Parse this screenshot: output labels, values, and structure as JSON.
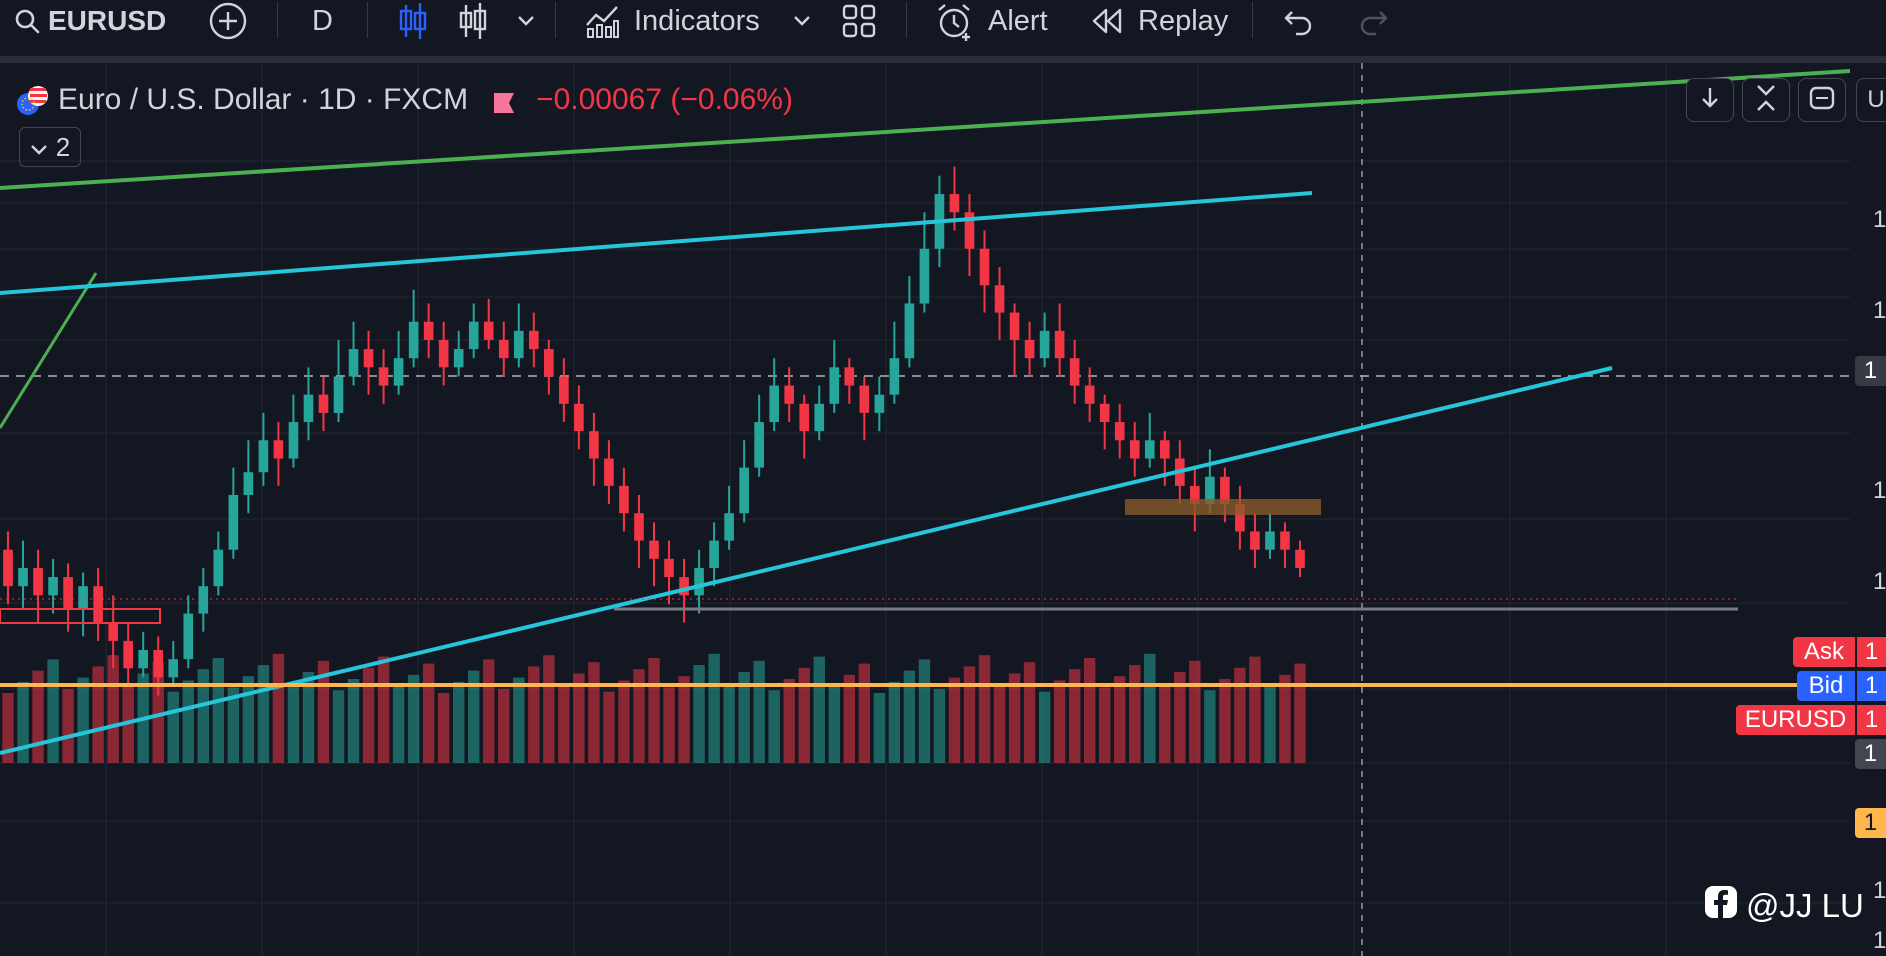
{
  "toolbar": {
    "symbol": "EURUSD",
    "interval": "D",
    "indicators_label": "Indicators",
    "alert_label": "Alert",
    "replay_label": "Replay"
  },
  "legend": {
    "title": "Euro / U.S. Dollar · 1D · FXCM",
    "change": "−0.00067 (−0.06%)",
    "collapse_count": "2"
  },
  "price_tags": {
    "ask": "Ask",
    "bid": "Bid",
    "symbol": "EURUSD",
    "axis_digit": "1",
    "top_right_partial": "U"
  },
  "watermark": {
    "text": "@JJ LU"
  },
  "colors": {
    "background": "#131722",
    "up": "#26a69a",
    "down": "#f23645",
    "trend_green": "#4caf50",
    "trend_cyan": "#26c6da",
    "support_orange": "#ffb74d",
    "ask_tag": "#f23645",
    "bid_tag": "#2962ff"
  },
  "chart_data": {
    "type": "candlestick",
    "symbol": "EURUSD",
    "interval": "1D",
    "source": "FXCM",
    "note_units": "relative price units (axis values truncated in screenshot)",
    "ohlc": [
      [
        0,
        38,
        30,
        42,
        26
      ],
      [
        1,
        30,
        34,
        40,
        25
      ],
      [
        2,
        34,
        28,
        38,
        22
      ],
      [
        3,
        28,
        32,
        36,
        24
      ],
      [
        4,
        32,
        25,
        35,
        20
      ],
      [
        5,
        25,
        30,
        33,
        19
      ],
      [
        6,
        30,
        22,
        34,
        18
      ],
      [
        7,
        22,
        18,
        28,
        12
      ],
      [
        8,
        18,
        12,
        22,
        8
      ],
      [
        9,
        12,
        16,
        20,
        10
      ],
      [
        10,
        16,
        10,
        19,
        6
      ],
      [
        11,
        10,
        14,
        18,
        8
      ],
      [
        12,
        14,
        24,
        28,
        12
      ],
      [
        13,
        24,
        30,
        34,
        20
      ],
      [
        14,
        30,
        38,
        42,
        28
      ],
      [
        15,
        38,
        50,
        56,
        36
      ],
      [
        16,
        50,
        55,
        62,
        46
      ],
      [
        17,
        55,
        62,
        68,
        52
      ],
      [
        18,
        62,
        58,
        66,
        52
      ],
      [
        19,
        58,
        66,
        72,
        56
      ],
      [
        20,
        66,
        72,
        78,
        62
      ],
      [
        21,
        72,
        68,
        76,
        64
      ],
      [
        22,
        68,
        76,
        84,
        66
      ],
      [
        23,
        76,
        82,
        88,
        74
      ],
      [
        24,
        82,
        78,
        86,
        72
      ],
      [
        25,
        78,
        74,
        82,
        70
      ],
      [
        26,
        74,
        80,
        86,
        72
      ],
      [
        27,
        80,
        88,
        95,
        78
      ],
      [
        28,
        88,
        84,
        92,
        80
      ],
      [
        29,
        84,
        78,
        88,
        74
      ],
      [
        30,
        78,
        82,
        86,
        76
      ],
      [
        31,
        82,
        88,
        92,
        80
      ],
      [
        32,
        88,
        84,
        93,
        82
      ],
      [
        33,
        84,
        80,
        88,
        76
      ],
      [
        34,
        80,
        86,
        92,
        78
      ],
      [
        35,
        86,
        82,
        90,
        78
      ],
      [
        36,
        82,
        76,
        84,
        72
      ],
      [
        37,
        76,
        70,
        80,
        66
      ],
      [
        38,
        70,
        64,
        74,
        60
      ],
      [
        39,
        64,
        58,
        68,
        52
      ],
      [
        40,
        58,
        52,
        62,
        48
      ],
      [
        41,
        52,
        46,
        56,
        42
      ],
      [
        42,
        46,
        40,
        50,
        34
      ],
      [
        43,
        40,
        36,
        44,
        30
      ],
      [
        44,
        36,
        32,
        40,
        26
      ],
      [
        45,
        32,
        28,
        36,
        22
      ],
      [
        46,
        28,
        34,
        38,
        24
      ],
      [
        47,
        34,
        40,
        44,
        30
      ],
      [
        48,
        40,
        46,
        52,
        38
      ],
      [
        49,
        46,
        56,
        62,
        44
      ],
      [
        50,
        56,
        66,
        72,
        54
      ],
      [
        51,
        66,
        74,
        80,
        64
      ],
      [
        52,
        74,
        70,
        78,
        66
      ],
      [
        53,
        70,
        64,
        72,
        58
      ],
      [
        54,
        64,
        70,
        74,
        62
      ],
      [
        55,
        70,
        78,
        84,
        68
      ],
      [
        56,
        78,
        74,
        80,
        70
      ],
      [
        57,
        74,
        68,
        76,
        62
      ],
      [
        58,
        68,
        72,
        76,
        64
      ],
      [
        59,
        72,
        80,
        88,
        70
      ],
      [
        60,
        80,
        92,
        98,
        78
      ],
      [
        61,
        92,
        104,
        112,
        90
      ],
      [
        62,
        104,
        116,
        120,
        100
      ],
      [
        63,
        116,
        112,
        122,
        108
      ],
      [
        64,
        112,
        104,
        116,
        98
      ],
      [
        65,
        104,
        96,
        108,
        90
      ],
      [
        66,
        96,
        90,
        100,
        84
      ],
      [
        67,
        90,
        84,
        92,
        76
      ],
      [
        68,
        84,
        80,
        88,
        76
      ],
      [
        69,
        80,
        86,
        90,
        78
      ],
      [
        70,
        86,
        80,
        92,
        76
      ],
      [
        71,
        80,
        74,
        84,
        70
      ],
      [
        72,
        74,
        70,
        78,
        66
      ],
      [
        73,
        70,
        66,
        72,
        60
      ],
      [
        74,
        66,
        62,
        70,
        58
      ],
      [
        75,
        62,
        58,
        66,
        54
      ],
      [
        76,
        58,
        62,
        68,
        56
      ],
      [
        77,
        62,
        58,
        64,
        52
      ],
      [
        78,
        58,
        52,
        62,
        48
      ],
      [
        79,
        52,
        48,
        56,
        42
      ],
      [
        80,
        48,
        54,
        60,
        46
      ],
      [
        81,
        54,
        48,
        56,
        44
      ],
      [
        82,
        48,
        42,
        52,
        38
      ],
      [
        83,
        42,
        38,
        46,
        34
      ],
      [
        84,
        38,
        42,
        46,
        36
      ],
      [
        85,
        42,
        38,
        44,
        34
      ],
      [
        86,
        38,
        34,
        40,
        32
      ]
    ],
    "trendlines": [
      {
        "name": "",
        "color": "green"
      },
      {
        "name": "",
        "color": "cyan-upper"
      },
      {
        "name": "",
        "color": "cyan-lower"
      }
    ],
    "support_level": "orange",
    "has_volume": true,
    "grid": true
  }
}
